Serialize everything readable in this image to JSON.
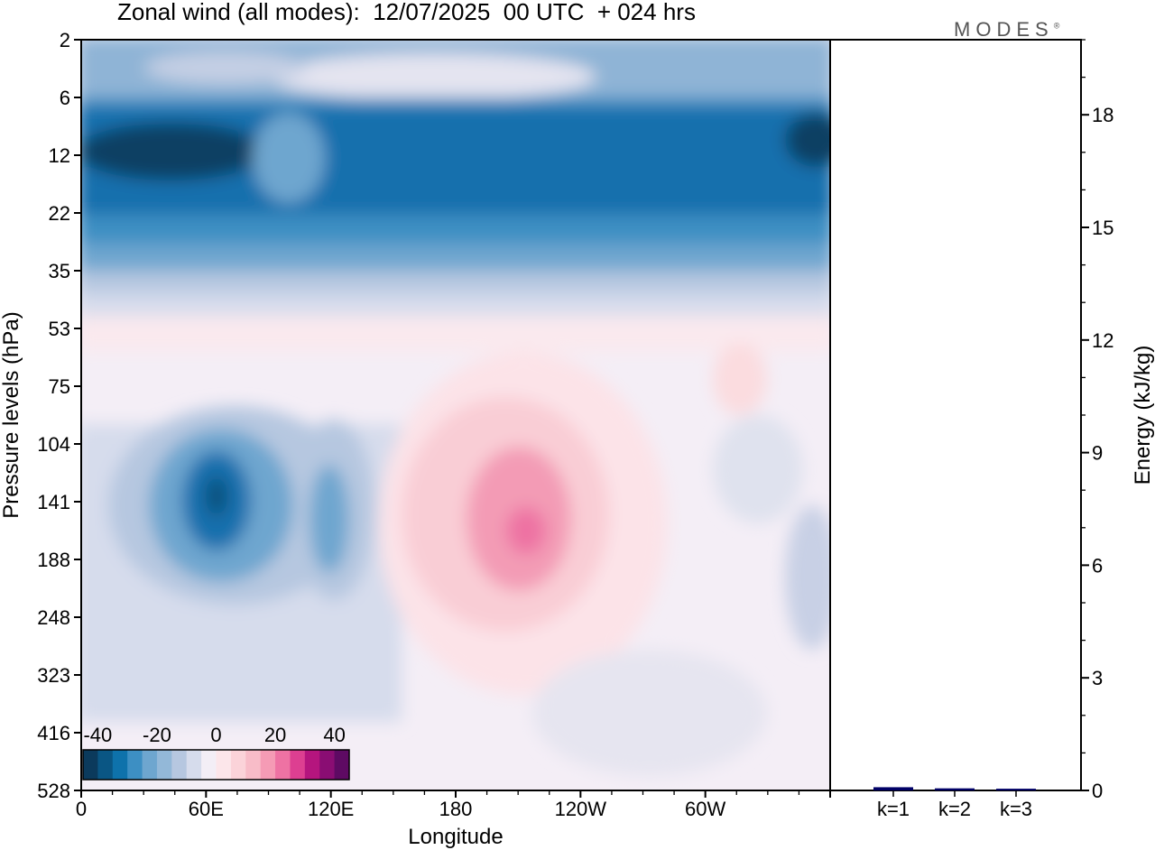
{
  "title": "Zonal wind (all modes):  12/07/2025  00 UTC  + 024 hrs",
  "logo_text": "MODES",
  "logo_mark": "®",
  "chart_data": [
    {
      "type": "heatmap",
      "title": "Zonal wind (all modes):  12/07/2025  00 UTC  + 024 hrs",
      "xlabel": "Longitude",
      "ylabel": "Pressure levels (hPa)",
      "x_ticks": [
        {
          "lon": 0,
          "label": "0"
        },
        {
          "lon": 60,
          "label": "60E"
        },
        {
          "lon": 120,
          "label": "120E"
        },
        {
          "lon": 180,
          "label": "180"
        },
        {
          "lon": 240,
          "label": "120W"
        },
        {
          "lon": 300,
          "label": "60W"
        }
      ],
      "xlim": [
        0,
        360
      ],
      "y_levels": [
        "2",
        "6",
        "12",
        "22",
        "35",
        "53",
        "75",
        "104",
        "141",
        "188",
        "248",
        "323",
        "416",
        "528"
      ],
      "colorbar": {
        "min": -45,
        "max": 45,
        "step": 5,
        "tick_labels": [
          "-40",
          "-20",
          "0",
          "20",
          "40"
        ],
        "tick_values": [
          -40,
          -20,
          0,
          20,
          40
        ],
        "colors": [
          "#0b3a5c",
          "#0a5684",
          "#0e72ab",
          "#3d8fc3",
          "#6ea6cf",
          "#93b8d8",
          "#b6c7e0",
          "#d6dcec",
          "#f3eef6",
          "#fce6ea",
          "#fbd3d9",
          "#f8bcc8",
          "#f59bb5",
          "#ee72a3",
          "#dd3f91",
          "#b5157e",
          "#8a0d73",
          "#5e0a63"
        ]
      },
      "features": [
        {
          "name": "stratospheric easterlies",
          "level_range": [
            "6",
            "35"
          ],
          "value": -30
        },
        {
          "name": "upper stratosphere",
          "level_range": [
            "2",
            "6"
          ],
          "value": -15
        },
        {
          "name": "easterly core",
          "lon": 65,
          "level": "141",
          "value": -35
        },
        {
          "name": "secondary easterly",
          "lon": 120,
          "level": "141",
          "value": -25
        },
        {
          "name": "westerly core",
          "lon": 215,
          "level": "141",
          "value": 20
        }
      ]
    },
    {
      "type": "bar",
      "ylabel": "Energy (kJ/kg)",
      "categories": [
        "k=1",
        "k=2",
        "k=3"
      ],
      "values": [
        0.05,
        0.02,
        0.01
      ],
      "ylim": [
        0,
        20
      ],
      "y_ticks": [
        0,
        3,
        6,
        9,
        12,
        15,
        18
      ],
      "bar_color": "#000066"
    }
  ]
}
